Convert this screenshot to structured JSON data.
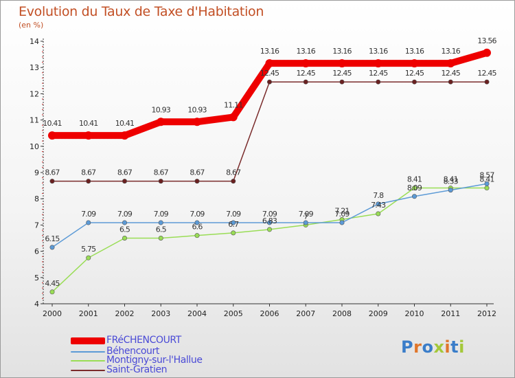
{
  "title": "Evolution du Taux de Taxe d'Habitation",
  "subtitle": "(en %)",
  "chart_data": {
    "type": "line",
    "title": "Evolution du Taux de Taxe d'Habitation",
    "ylabel": "(en %)",
    "x": [
      "2000",
      "2001",
      "2002",
      "2003",
      "2004",
      "2005",
      "2006",
      "2007",
      "2008",
      "2009",
      "2010",
      "2011",
      "2012"
    ],
    "ylim": [
      4,
      14
    ],
    "yticks": [
      "4",
      "5",
      "6",
      "7",
      "8",
      "9",
      "10",
      "11",
      "12",
      "13",
      "14"
    ],
    "grid": false,
    "legend_position": "bottom-left",
    "series": [
      {
        "name": "FRéCHENCOURT",
        "color": "#ee0000",
        "values": [
          10.41,
          10.41,
          10.41,
          10.93,
          10.93,
          11.11,
          13.16,
          13.16,
          13.16,
          13.16,
          13.16,
          13.16,
          13.56
        ],
        "labels": [
          "10.41",
          "10.41",
          "10.41",
          "10.93",
          "10.93",
          "11.11",
          "13.16",
          "13.16",
          "13.16",
          "13.16",
          "13.16",
          "13.16",
          "13.56"
        ]
      },
      {
        "name": "Béhencourt",
        "color": "#5c9ad6",
        "values": [
          6.15,
          7.09,
          7.09,
          7.09,
          7.09,
          7.09,
          7.09,
          7.09,
          7.09,
          7.8,
          8.09,
          8.33,
          8.57
        ],
        "labels": [
          "6.15",
          "7.09",
          "7.09",
          "7.09",
          "7.09",
          "7.09",
          "7.09",
          "7.09",
          "7.09",
          "7.8",
          "8.09",
          "8.33",
          "8.57"
        ]
      },
      {
        "name": "Montigny-sur-l'Hallue",
        "color": "#99dd55",
        "values": [
          4.45,
          5.75,
          6.5,
          6.5,
          6.6,
          6.7,
          6.83,
          7.0,
          7.21,
          7.43,
          8.41,
          8.41,
          8.41
        ],
        "labels": [
          "4.45",
          "5.75",
          "6.5",
          "6.5",
          "6.6",
          "6.7",
          "6.83",
          "7",
          "7.21",
          "7.43",
          "8.41",
          "8.41",
          "8.41"
        ]
      },
      {
        "name": "Saint-Gratien",
        "color": "#7a2b2b",
        "values": [
          8.67,
          8.67,
          8.67,
          8.67,
          8.67,
          8.67,
          12.45,
          12.45,
          12.45,
          12.45,
          12.45,
          12.45,
          12.45
        ],
        "labels": [
          "8.67",
          "8.67",
          "8.67",
          "8.67",
          "8.67",
          "8.67",
          "12.45",
          "12.45",
          "12.45",
          "12.45",
          "12.45",
          "12.45",
          "12.45"
        ]
      }
    ]
  },
  "legend": [
    {
      "label": "FRéCHENCOURT",
      "color": "#ee0000"
    },
    {
      "label": "Béhencourt",
      "color": "#5c9ad6"
    },
    {
      "label": "Montigny-sur-l'Hallue",
      "color": "#99dd55"
    },
    {
      "label": "Saint-Gratien",
      "color": "#7a2b2b"
    }
  ],
  "logo": {
    "text": "Proxiti",
    "letter_colors": [
      "#3a7dc9",
      "#e0762b",
      "#3a7dc9",
      "#a4c83a",
      "#e0762b",
      "#3a7dc9",
      "#a4c83a"
    ]
  }
}
